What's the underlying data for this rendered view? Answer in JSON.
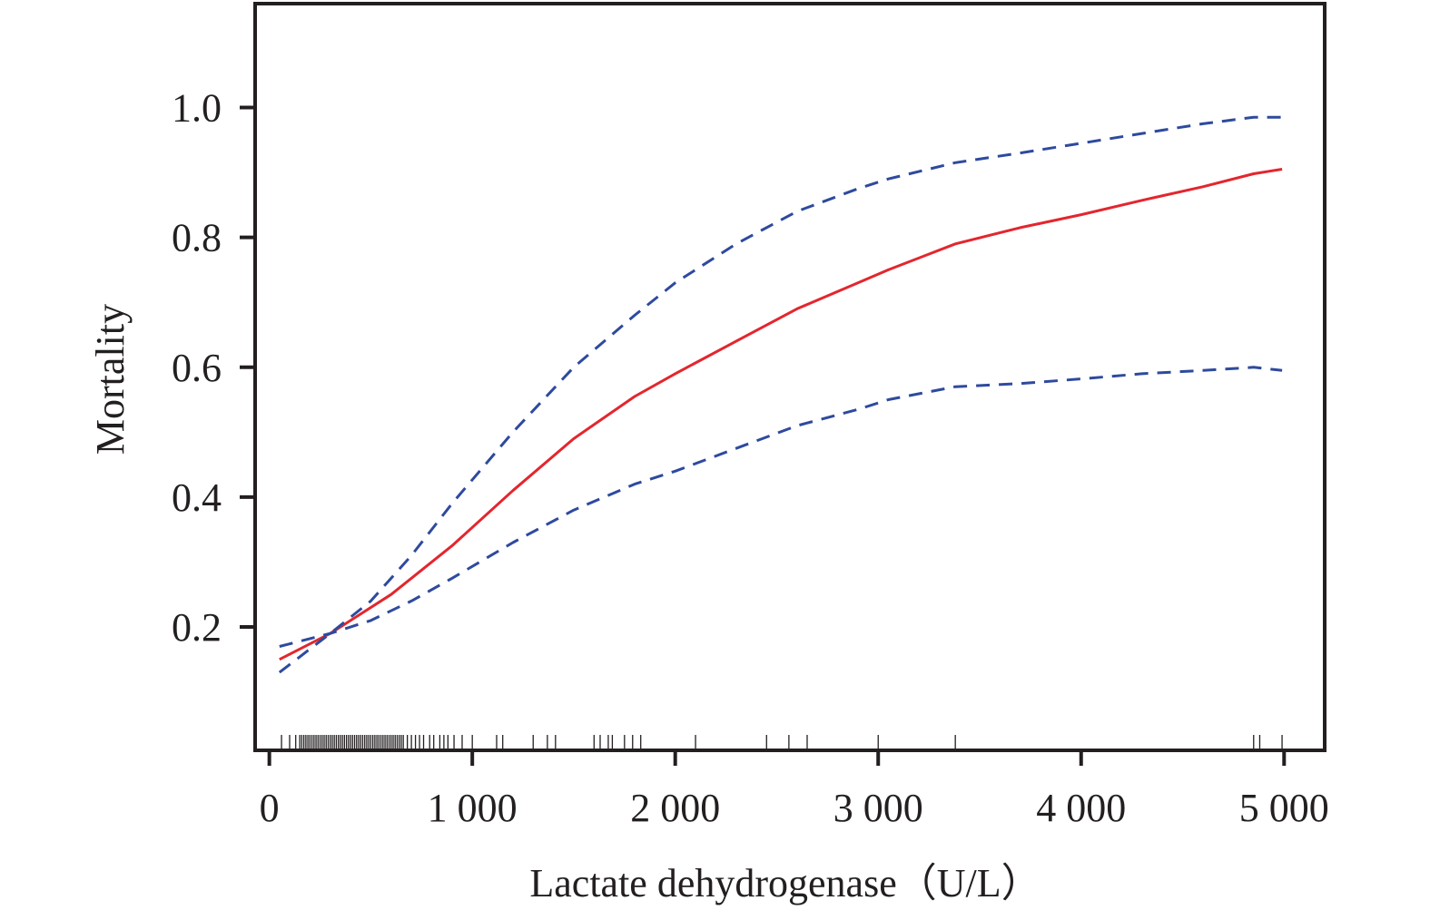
{
  "chart_data": {
    "type": "line",
    "xlabel": "Lactate dehydrogenase（U/L）",
    "ylabel": "Mortality",
    "xlim": [
      -70,
      5200
    ],
    "ylim": [
      0.01,
      1.16
    ],
    "x_ticks": [
      0,
      1000,
      2000,
      3000,
      4000,
      5000
    ],
    "x_tick_labels": [
      "0",
      "1 000",
      "2 000",
      "3 000",
      "4 000",
      "5 000"
    ],
    "y_ticks": [
      0.2,
      0.4,
      0.6,
      0.8,
      1.0
    ],
    "y_tick_labels": [
      "0.2",
      "0.4",
      "0.6",
      "0.8",
      "1.0"
    ],
    "grid": false,
    "legend": "none",
    "colors": {
      "estimate": "#e3262e",
      "ci": "#2e4a9e",
      "axis": "#231f20"
    },
    "series": [
      {
        "role": "estimate",
        "style": "solid",
        "x": [
          50,
          300,
          600,
          900,
          1200,
          1500,
          1800,
          2000,
          2300,
          2600,
          2900,
          3050,
          3380,
          3700,
          4000,
          4300,
          4600,
          4850,
          4990
        ],
        "y": [
          0.15,
          0.19,
          0.25,
          0.325,
          0.41,
          0.49,
          0.555,
          0.59,
          0.64,
          0.69,
          0.73,
          0.75,
          0.79,
          0.815,
          0.835,
          0.857,
          0.878,
          0.898,
          0.905
        ]
      },
      {
        "role": "upper",
        "style": "dashed",
        "x": [
          50,
          300,
          500,
          700,
          900,
          1200,
          1500,
          1800,
          2000,
          2300,
          2600,
          2900,
          3050,
          3380,
          3700,
          4000,
          4300,
          4600,
          4850,
          4990
        ],
        "y": [
          0.13,
          0.19,
          0.24,
          0.31,
          0.39,
          0.5,
          0.6,
          0.68,
          0.73,
          0.79,
          0.84,
          0.875,
          0.89,
          0.915,
          0.93,
          0.945,
          0.96,
          0.975,
          0.985,
          0.985
        ]
      },
      {
        "role": "lower",
        "style": "dashed",
        "x": [
          50,
          300,
          500,
          700,
          900,
          1200,
          1500,
          1800,
          2000,
          2300,
          2600,
          2900,
          3050,
          3380,
          3700,
          4000,
          4300,
          4600,
          4850,
          4990
        ],
        "y": [
          0.17,
          0.19,
          0.21,
          0.24,
          0.275,
          0.33,
          0.38,
          0.42,
          0.44,
          0.475,
          0.51,
          0.535,
          0.55,
          0.57,
          0.575,
          0.582,
          0.59,
          0.595,
          0.6,
          0.595
        ]
      }
    ],
    "rug_x": [
      60,
      100,
      130,
      150,
      160,
      170,
      180,
      190,
      200,
      210,
      220,
      230,
      240,
      250,
      260,
      270,
      280,
      290,
      300,
      310,
      320,
      330,
      340,
      350,
      360,
      370,
      380,
      390,
      400,
      410,
      420,
      430,
      440,
      450,
      460,
      470,
      480,
      490,
      500,
      510,
      520,
      530,
      540,
      550,
      560,
      570,
      580,
      590,
      600,
      610,
      620,
      630,
      640,
      650,
      660,
      680,
      700,
      720,
      740,
      760,
      790,
      810,
      840,
      860,
      880,
      910,
      950,
      1000,
      1120,
      1150,
      1300,
      1370,
      1410,
      1600,
      1630,
      1670,
      1690,
      1750,
      1790,
      1830,
      2100,
      2450,
      2560,
      2650,
      3000,
      3380,
      4850,
      4880,
      4990
    ]
  }
}
